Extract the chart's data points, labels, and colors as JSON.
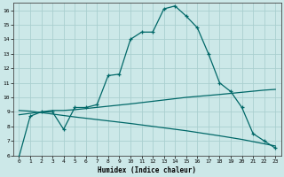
{
  "xlabel": "Humidex (Indice chaleur)",
  "bg_color": "#cce8e8",
  "grid_color": "#aacfcf",
  "line_color": "#006868",
  "xlim": [
    -0.5,
    23.5
  ],
  "ylim": [
    6,
    16.5
  ],
  "xticks": [
    0,
    1,
    2,
    3,
    4,
    5,
    6,
    7,
    8,
    9,
    10,
    11,
    12,
    13,
    14,
    15,
    16,
    17,
    18,
    19,
    20,
    21,
    22,
    23
  ],
  "yticks": [
    6,
    7,
    8,
    9,
    10,
    11,
    12,
    13,
    14,
    15,
    16
  ],
  "line1_x": [
    0,
    1,
    2,
    3,
    4,
    5,
    6,
    7,
    8,
    9,
    10,
    11,
    12,
    13,
    14,
    15,
    16,
    17,
    18,
    19,
    20,
    21,
    22,
    23
  ],
  "line1_y": [
    5.9,
    8.7,
    9.0,
    9.0,
    7.8,
    9.3,
    9.3,
    9.5,
    11.5,
    11.6,
    14.0,
    14.5,
    14.5,
    16.1,
    16.3,
    15.6,
    14.8,
    13.0,
    11.0,
    10.4,
    9.3,
    7.5,
    7.0,
    6.5
  ],
  "line2_x": [
    0,
    1,
    2,
    3,
    4,
    5,
    10,
    15,
    18,
    20,
    22,
    23
  ],
  "line2_y": [
    8.8,
    8.9,
    9.0,
    9.1,
    9.1,
    9.15,
    9.55,
    10.0,
    10.2,
    10.35,
    10.5,
    10.55
  ],
  "line3_x": [
    0,
    1,
    2,
    3,
    4,
    5,
    10,
    15,
    18,
    20,
    22,
    23
  ],
  "line3_y": [
    9.1,
    9.05,
    8.95,
    8.85,
    8.75,
    8.65,
    8.2,
    7.7,
    7.35,
    7.1,
    6.8,
    6.65
  ]
}
